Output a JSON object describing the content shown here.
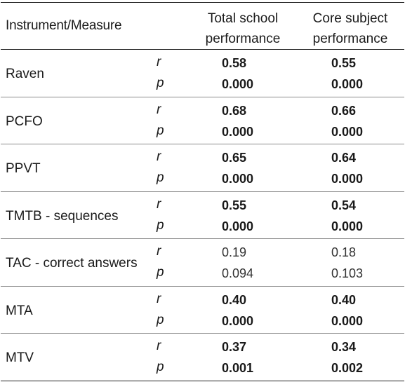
{
  "header": {
    "measure": "Instrument/Measure",
    "col1": "Total school performance",
    "col2": "Core subject performance"
  },
  "labels": {
    "r": "r",
    "p": "p"
  },
  "rows": [
    {
      "name": "Raven",
      "col1_r": "0.58",
      "col1_p": "0.000",
      "col2_r": "0.55",
      "col2_p": "0.000",
      "significant": true
    },
    {
      "name": "PCFO",
      "col1_r": "0.68",
      "col1_p": "0.000",
      "col2_r": "0.66",
      "col2_p": "0.000",
      "significant": true
    },
    {
      "name": "PPVT",
      "col1_r": "0.65",
      "col1_p": "0.000",
      "col2_r": "0.64",
      "col2_p": "0.000",
      "significant": true
    },
    {
      "name": "TMTB - sequences",
      "col1_r": "0.55",
      "col1_p": "0.000",
      "col2_r": "0.54",
      "col2_p": "0.000",
      "significant": true
    },
    {
      "name": "TAC - correct answers",
      "col1_r": "0.19",
      "col1_p": "0.094",
      "col2_r": "0.18",
      "col2_p": "0.103",
      "significant": false
    },
    {
      "name": "MTA",
      "col1_r": "0.40",
      "col1_p": "0.000",
      "col2_r": "0.40",
      "col2_p": "0.000",
      "significant": true
    },
    {
      "name": "MTV",
      "col1_r": "0.37",
      "col1_p": "0.001",
      "col2_r": "0.34",
      "col2_p": "0.002",
      "significant": true
    }
  ]
}
